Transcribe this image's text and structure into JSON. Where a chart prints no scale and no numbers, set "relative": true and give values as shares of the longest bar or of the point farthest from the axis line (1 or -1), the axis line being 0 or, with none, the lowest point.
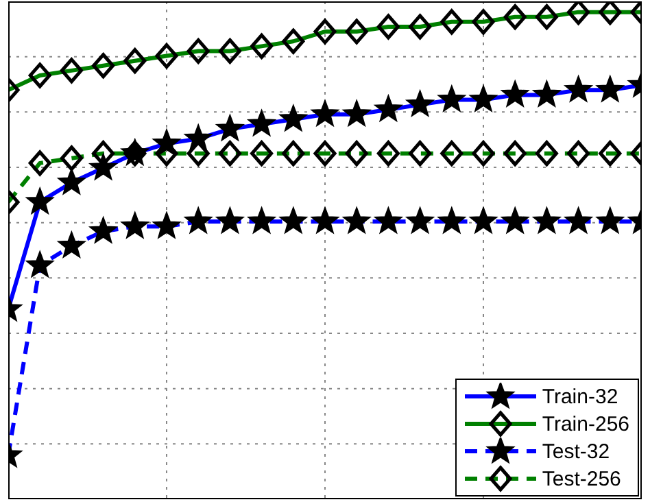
{
  "chart_data": {
    "type": "line",
    "relative": true,
    "grid": true,
    "legend": "bottom right",
    "categories": [
      null,
      null,
      null,
      null,
      null,
      null,
      null,
      null,
      null,
      null,
      null,
      null,
      null,
      null,
      null,
      null,
      null,
      null,
      null,
      null,
      null
    ],
    "series": [
      {
        "name": "Train-32",
        "color": "#0000ff",
        "marker": "star",
        "line_style": "solid",
        "values": [
          0.39,
          0.61,
          0.65,
          0.68,
          0.71,
          0.73,
          0.74,
          0.76,
          0.77,
          0.78,
          0.79,
          0.79,
          0.8,
          0.81,
          0.82,
          0.82,
          0.83,
          0.83,
          0.84,
          0.84,
          0.85
        ]
      },
      {
        "name": "Train-256",
        "color": "#008000",
        "marker": "diamond",
        "line_style": "solid",
        "values": [
          0.84,
          0.87,
          0.88,
          0.89,
          0.9,
          0.91,
          0.92,
          0.92,
          0.93,
          0.94,
          0.96,
          0.96,
          0.97,
          0.97,
          0.98,
          0.98,
          0.99,
          0.99,
          1.0,
          1.0,
          1.0
        ]
      },
      {
        "name": "Test-32",
        "color": "#0000ff",
        "marker": "star",
        "line_style": "dashed",
        "values": [
          0.09,
          0.48,
          0.52,
          0.55,
          0.56,
          0.56,
          0.57,
          0.57,
          0.57,
          0.57,
          0.57,
          0.57,
          0.57,
          0.57,
          0.57,
          0.57,
          0.57,
          0.57,
          0.57,
          0.57,
          0.57
        ]
      },
      {
        "name": "Test-256",
        "color": "#008000",
        "marker": "diamond",
        "line_style": "dashed",
        "values": [
          0.61,
          0.69,
          0.7,
          0.71,
          0.71,
          0.71,
          0.71,
          0.71,
          0.71,
          0.71,
          0.71,
          0.71,
          0.71,
          0.71,
          0.71,
          0.71,
          0.71,
          0.71,
          0.71,
          0.71,
          0.71
        ]
      }
    ]
  }
}
